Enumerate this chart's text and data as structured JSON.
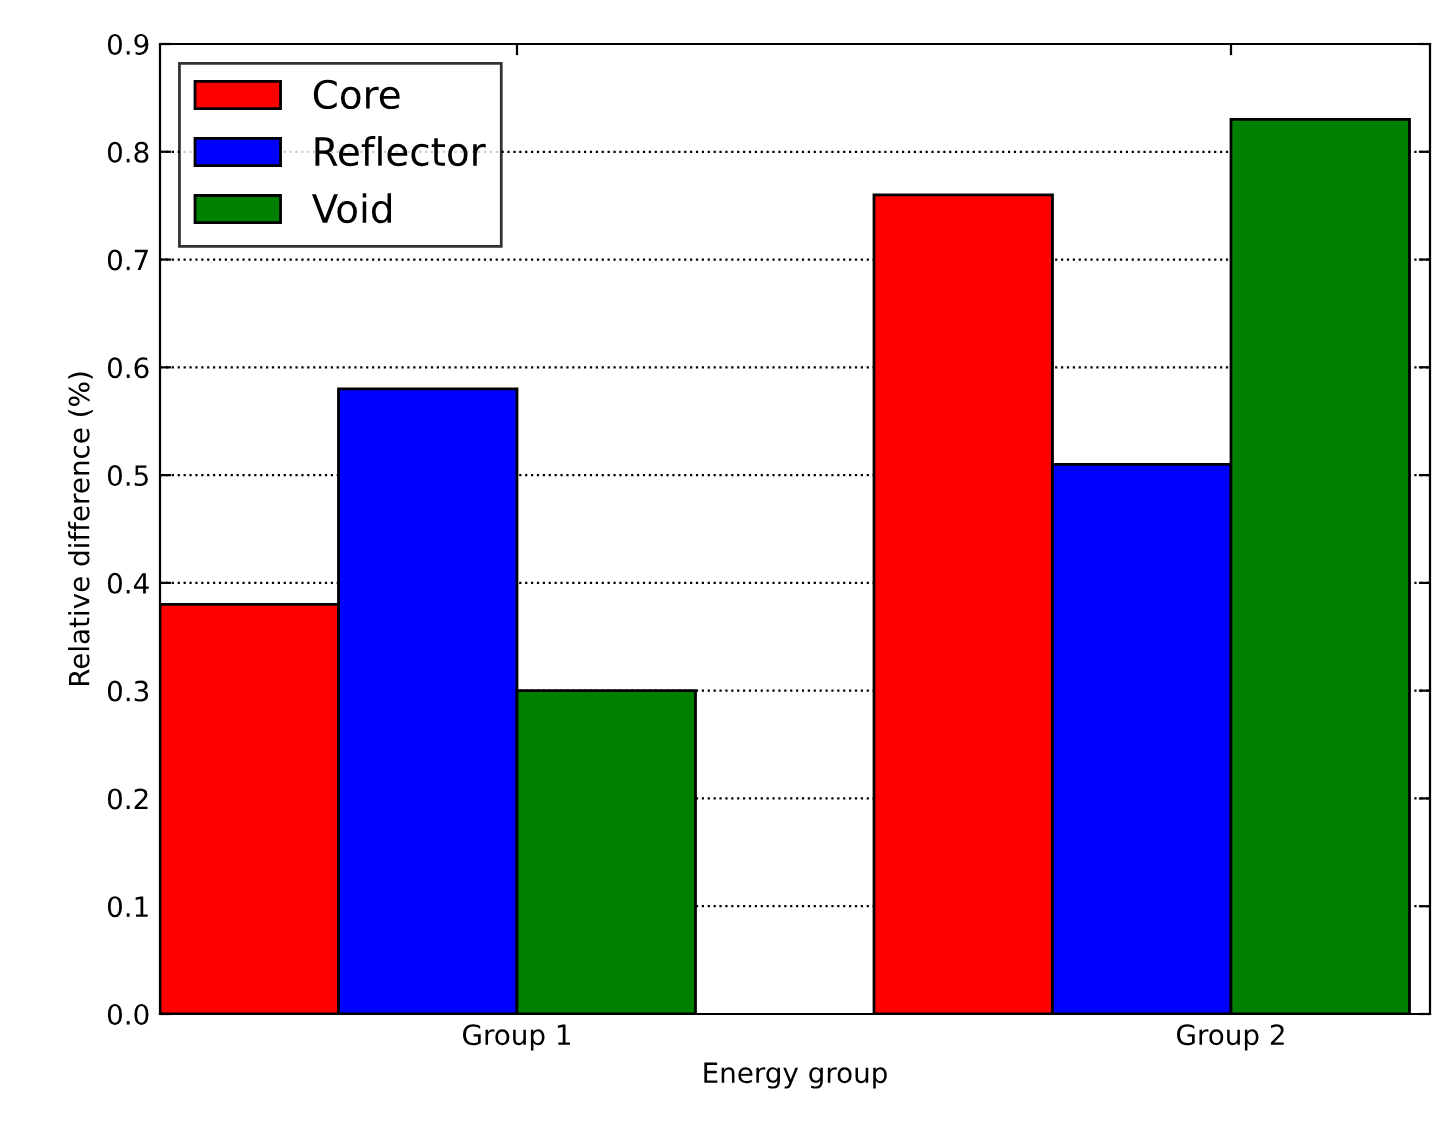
{
  "chart_data": {
    "type": "bar",
    "xlabel": "Energy group",
    "ylabel": "Relative difference (%)",
    "categories": [
      "Group 1",
      "Group 2"
    ],
    "series": [
      {
        "name": "Core",
        "color": "#ff0000",
        "values": [
          0.38,
          0.76
        ]
      },
      {
        "name": "Reflector",
        "color": "#0000ff",
        "values": [
          0.58,
          0.51
        ]
      },
      {
        "name": "Void",
        "color": "#008000",
        "values": [
          0.3,
          0.83
        ]
      }
    ],
    "ylim": [
      0,
      0.9
    ],
    "yticks": [
      {
        "value": 0,
        "label": "0.0"
      },
      0.1,
      0.2,
      0.3,
      0.4,
      0.5,
      0.6,
      0.7,
      0.8,
      0.9
    ],
    "grid": "y",
    "legend": "top left"
  }
}
